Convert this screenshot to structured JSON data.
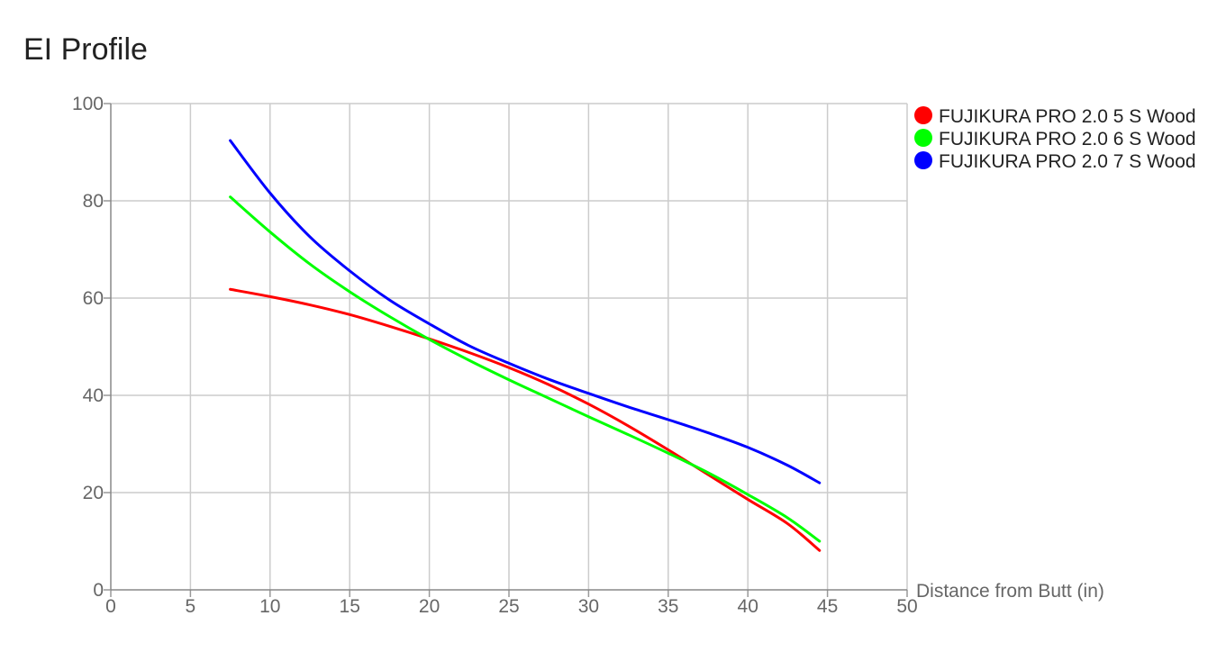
{
  "title": "EI Profile",
  "chart_data": {
    "type": "line",
    "title": "EI Profile",
    "xlabel": "Distance from Butt (in)",
    "ylabel": "",
    "xlim": [
      0,
      50
    ],
    "ylim": [
      0,
      100
    ],
    "x_ticks": [
      "0",
      "5",
      "10",
      "15",
      "20",
      "25",
      "30",
      "35",
      "40",
      "45",
      "50"
    ],
    "y_ticks": [
      "0",
      "20",
      "40",
      "60",
      "80",
      "100"
    ],
    "grid": true,
    "legend_position": "top-right",
    "series": [
      {
        "name": "FUJIKURA PRO 2.0 5 S Wood",
        "color": "#ff0000",
        "points": [
          [
            7.5,
            61.8
          ],
          [
            10,
            60.3
          ],
          [
            12.5,
            58.6
          ],
          [
            15,
            56.6
          ],
          [
            17.5,
            54.2
          ],
          [
            20,
            51.6
          ],
          [
            22.5,
            48.8
          ],
          [
            25,
            45.7
          ],
          [
            27.5,
            42.2
          ],
          [
            30,
            38.2
          ],
          [
            32.5,
            33.7
          ],
          [
            35,
            28.8
          ],
          [
            37.5,
            23.7
          ],
          [
            40,
            18.6
          ],
          [
            42.5,
            13.6
          ],
          [
            44.5,
            8.1
          ]
        ]
      },
      {
        "name": "FUJIKURA PRO 2.0 6 S Wood",
        "color": "#00ff00",
        "points": [
          [
            7.5,
            80.8
          ],
          [
            10,
            73.6
          ],
          [
            12.5,
            67.0
          ],
          [
            15,
            61.3
          ],
          [
            17.5,
            56.2
          ],
          [
            20,
            51.5
          ],
          [
            22.5,
            47.2
          ],
          [
            25,
            43.2
          ],
          [
            27.5,
            39.4
          ],
          [
            30,
            35.6
          ],
          [
            32.5,
            31.9
          ],
          [
            35,
            28.1
          ],
          [
            37.5,
            24.1
          ],
          [
            40,
            19.6
          ],
          [
            42.5,
            14.8
          ],
          [
            44.5,
            10.0
          ]
        ]
      },
      {
        "name": "FUJIKURA PRO 2.0 7 S Wood",
        "color": "#0000ff",
        "points": [
          [
            7.5,
            92.4
          ],
          [
            10,
            81.6
          ],
          [
            12.5,
            72.6
          ],
          [
            15,
            65.6
          ],
          [
            17.5,
            59.6
          ],
          [
            20,
            54.7
          ],
          [
            22.5,
            50.2
          ],
          [
            25,
            46.6
          ],
          [
            27.5,
            43.3
          ],
          [
            30,
            40.4
          ],
          [
            32.5,
            37.6
          ],
          [
            35,
            35.0
          ],
          [
            37.5,
            32.3
          ],
          [
            40,
            29.3
          ],
          [
            42.5,
            25.6
          ],
          [
            44.5,
            22.0
          ]
        ]
      }
    ]
  }
}
